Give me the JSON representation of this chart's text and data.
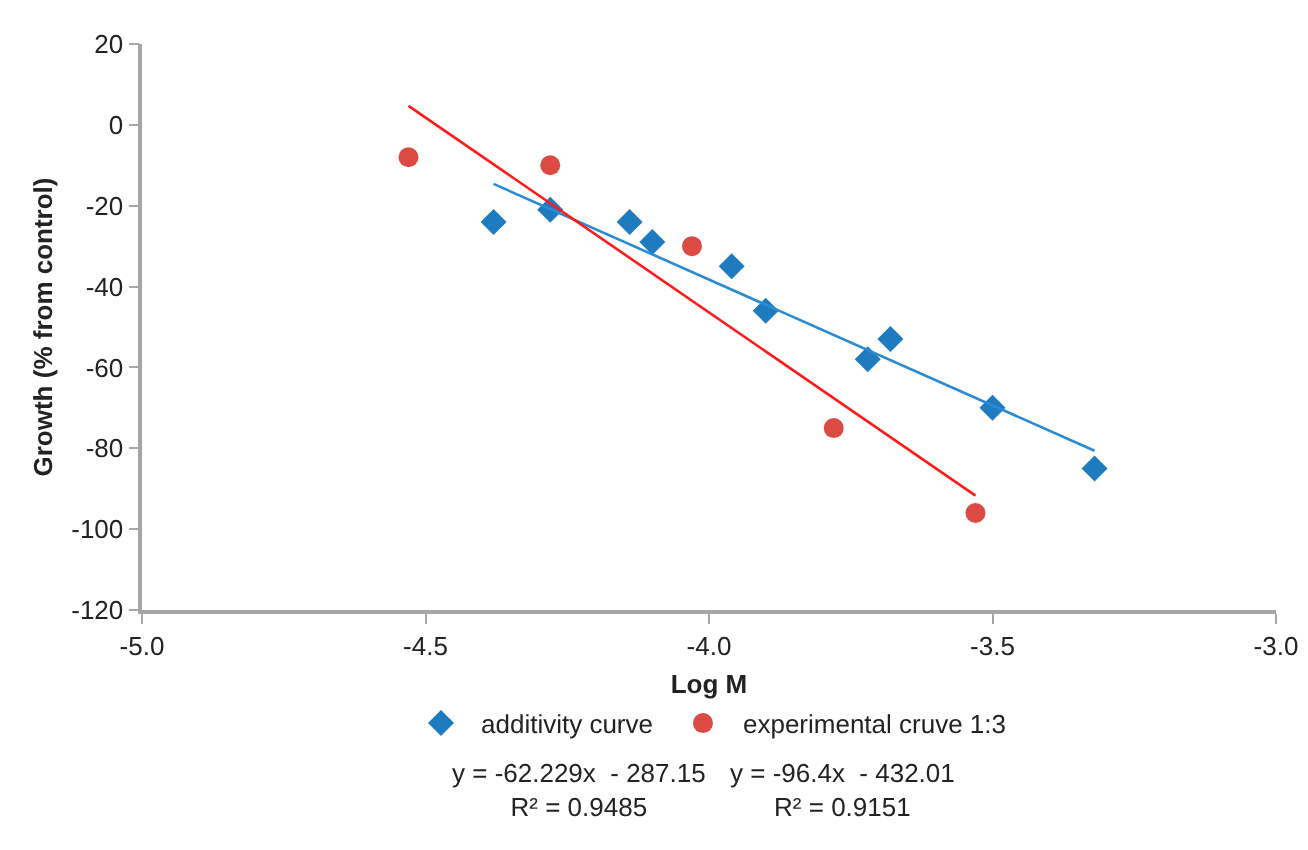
{
  "chart_data": {
    "type": "scatter",
    "xlabel": "Log M",
    "ylabel": "Growth (% from control)",
    "xlim": [
      -5.0,
      -3.0
    ],
    "xticks": [
      {
        "value": -5.0,
        "label": "-5.0"
      },
      {
        "value": -4.5,
        "label": "-4.5"
      },
      {
        "value": -4.0,
        "label": "-4.0"
      },
      {
        "value": -3.5,
        "label": "-3.5"
      },
      {
        "value": -3.0,
        "label": "-3.0"
      }
    ],
    "ylim": [
      -120,
      20
    ],
    "yticks": [
      -120,
      -100,
      -80,
      -60,
      -40,
      -20,
      0,
      20
    ],
    "grid": false,
    "legend": "bottom",
    "series": [
      {
        "name": "additivity curve",
        "color": "#1f7bc0",
        "marker": "diamond",
        "x": [
          -4.38,
          -4.28,
          -4.14,
          -4.1,
          -3.96,
          -3.9,
          -3.72,
          -3.68,
          -3.5,
          -3.32
        ],
        "values": [
          -24,
          -21,
          -24,
          -29,
          -35,
          -46,
          -58,
          -53,
          -70,
          -85
        ]
      },
      {
        "name": "experimental cruve 1:3",
        "color": "#dc4a44",
        "marker": "circle",
        "x": [
          -4.53,
          -4.28,
          -4.03,
          -3.78,
          -3.53
        ],
        "values": [
          -8,
          -10,
          -30,
          -75,
          -96
        ]
      },
      {
        "type": "line",
        "color": "#2a8ad4",
        "marker": "none",
        "x": [
          -4.38,
          -3.32
        ],
        "values": [
          -14.6,
          -80.6
        ]
      },
      {
        "type": "line",
        "color": "#ff1a1a",
        "marker": "none",
        "x": [
          -4.53,
          -3.53
        ],
        "values": [
          4.7,
          -91.7
        ]
      }
    ],
    "annotations": [
      "y = -62.229x  - 287.15\nR² = 0.9485",
      "y = -96.4x  - 432.01\nR² = 0.9151"
    ]
  }
}
